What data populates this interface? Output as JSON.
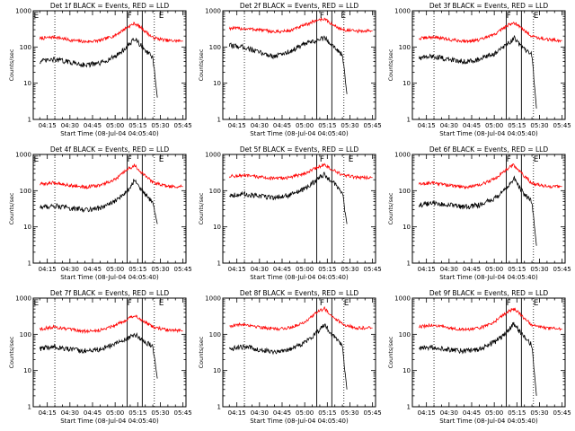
{
  "chart_data": [
    {
      "type": "line",
      "title": "Det 1f BLACK = Events, RED = LLD",
      "xlabel": "Start Time (08-Jul-04 04:05:40)",
      "ylabel": "Counts/sec",
      "xticks": [
        "04:15",
        "04:30",
        "04:45",
        "05:00",
        "05:15",
        "05:30",
        "05:45"
      ],
      "yticks": [
        "1",
        "10",
        "100",
        "1000"
      ],
      "xlim": [
        "04:05:40",
        "05:47"
      ],
      "ylim": [
        1,
        1000
      ],
      "yscale": "log",
      "markers": [
        {
          "label": "E",
          "time": "04:06"
        },
        {
          "label": "F",
          "time": "05:08"
        },
        {
          "label": "E",
          "time": "05:29"
        }
      ],
      "solid_lines": [
        "05:08",
        "05:18"
      ],
      "dotted_lines": [
        "04:20",
        "05:26"
      ],
      "series": [
        {
          "color": "#ff0000",
          "x": [
            "04:10",
            "04:20",
            "04:30",
            "04:40",
            "04:50",
            "05:00",
            "05:08",
            "05:13",
            "05:18",
            "05:25",
            "05:35",
            "05:45"
          ],
          "y": [
            170,
            190,
            155,
            140,
            150,
            210,
            350,
            450,
            320,
            180,
            150,
            145
          ]
        },
        {
          "color": "#000000",
          "x": [
            "04:10",
            "04:20",
            "04:30",
            "04:40",
            "04:50",
            "05:00",
            "05:08",
            "05:13",
            "05:18",
            "05:25",
            "05:28"
          ],
          "y": [
            40,
            45,
            38,
            32,
            35,
            55,
            100,
            170,
            100,
            50,
            4
          ]
        }
      ]
    },
    {
      "type": "line",
      "title": "Det 2f BLACK = Events, RED = LLD",
      "xlabel": "Start Time (08-Jul-04 04:05:40)",
      "ylabel": "Counts/sec",
      "xticks": [
        "04:15",
        "04:30",
        "04:45",
        "05:00",
        "05:15",
        "05:30",
        "05:45"
      ],
      "yticks": [
        "1",
        "10",
        "100",
        "1000"
      ],
      "xlim": [
        "04:05:40",
        "05:47"
      ],
      "ylim": [
        1,
        1000
      ],
      "yscale": "log",
      "markers": [
        {
          "label": "F",
          "time": "05:10"
        },
        {
          "label": "E",
          "time": "05:24"
        }
      ],
      "solid_lines": [
        "05:08",
        "05:18"
      ],
      "dotted_lines": [
        "04:20",
        "05:26"
      ],
      "series": [
        {
          "color": "#ff0000",
          "x": [
            "04:10",
            "04:20",
            "04:30",
            "04:40",
            "04:50",
            "05:00",
            "05:08",
            "05:13",
            "05:18",
            "05:25",
            "05:35",
            "05:45"
          ],
          "y": [
            330,
            320,
            300,
            260,
            280,
            400,
            550,
            600,
            420,
            300,
            270,
            280
          ]
        },
        {
          "color": "#000000",
          "x": [
            "04:10",
            "04:20",
            "04:30",
            "04:40",
            "04:50",
            "05:00",
            "05:08",
            "05:13",
            "05:18",
            "05:25",
            "05:28"
          ],
          "y": [
            110,
            100,
            70,
            55,
            75,
            120,
            150,
            180,
            120,
            60,
            5
          ]
        }
      ]
    },
    {
      "type": "line",
      "title": "Det 3f BLACK = Events, RED = LLD",
      "xlabel": "Start Time (08-Jul-04 04:05:40)",
      "ylabel": "Counts/sec",
      "xticks": [
        "04:15",
        "04:30",
        "04:45",
        "05:00",
        "05:15",
        "05:30",
        "05:45"
      ],
      "yticks": [
        "1",
        "10",
        "100",
        "1000"
      ],
      "xlim": [
        "04:05:40",
        "05:47"
      ],
      "ylim": [
        1,
        1000
      ],
      "yscale": "log",
      "markers": [
        {
          "label": "F",
          "time": "05:08"
        },
        {
          "label": "E",
          "time": "05:26"
        }
      ],
      "solid_lines": [
        "05:08",
        "05:18"
      ],
      "dotted_lines": [
        "04:20",
        "05:26"
      ],
      "series": [
        {
          "color": "#ff0000",
          "x": [
            "04:10",
            "04:20",
            "04:30",
            "04:40",
            "04:50",
            "05:00",
            "05:08",
            "05:13",
            "05:18",
            "05:25",
            "05:35",
            "05:45"
          ],
          "y": [
            170,
            190,
            160,
            145,
            155,
            220,
            380,
            480,
            330,
            200,
            160,
            150
          ]
        },
        {
          "color": "#000000",
          "x": [
            "04:10",
            "04:20",
            "04:30",
            "04:40",
            "04:50",
            "05:00",
            "05:08",
            "05:13",
            "05:18",
            "05:25",
            "05:28"
          ],
          "y": [
            50,
            55,
            45,
            40,
            45,
            65,
            110,
            180,
            100,
            60,
            2
          ]
        }
      ]
    },
    {
      "type": "line",
      "title": "Det 4f BLACK = Events, RED = LLD",
      "xlabel": "Start Time (08-Jul-04 04:05:40)",
      "ylabel": "Counts/sec",
      "xticks": [
        "04:15",
        "04:30",
        "04:45",
        "05:00",
        "05:15",
        "05:30",
        "05:45"
      ],
      "yticks": [
        "1",
        "10",
        "100",
        "1000"
      ],
      "xlim": [
        "04:05:40",
        "05:47"
      ],
      "ylim": [
        1,
        1000
      ],
      "yscale": "log",
      "markers": [
        {
          "label": "E",
          "time": "04:06"
        },
        {
          "label": "F",
          "time": "05:08"
        },
        {
          "label": "E",
          "time": "05:29"
        }
      ],
      "solid_lines": [
        "05:08",
        "05:18"
      ],
      "dotted_lines": [
        "04:20",
        "05:26"
      ],
      "series": [
        {
          "color": "#ff0000",
          "x": [
            "04:10",
            "04:20",
            "04:30",
            "04:40",
            "04:50",
            "05:00",
            "05:08",
            "05:13",
            "05:18",
            "05:25",
            "05:35",
            "05:45"
          ],
          "y": [
            150,
            165,
            140,
            125,
            140,
            200,
            380,
            500,
            300,
            170,
            130,
            130
          ]
        },
        {
          "color": "#000000",
          "x": [
            "04:10",
            "04:20",
            "04:30",
            "04:40",
            "04:50",
            "05:00",
            "05:08",
            "05:13",
            "05:18",
            "05:25",
            "05:28"
          ],
          "y": [
            35,
            38,
            33,
            30,
            33,
            50,
            100,
            200,
            100,
            45,
            12
          ]
        }
      ]
    },
    {
      "type": "line",
      "title": "Det 5f BLACK = Events, RED = LLD",
      "xlabel": "Start Time (08-Jul-04 04:05:40)",
      "ylabel": "Counts/sec",
      "xticks": [
        "04:15",
        "04:30",
        "04:45",
        "05:00",
        "05:15",
        "05:30",
        "05:45"
      ],
      "yticks": [
        "1",
        "10",
        "100",
        "1000"
      ],
      "xlim": [
        "04:05:40",
        "05:47"
      ],
      "ylim": [
        1,
        1000
      ],
      "yscale": "log",
      "markers": [
        {
          "label": "F",
          "time": "05:10"
        },
        {
          "label": "E",
          "time": "05:29"
        }
      ],
      "solid_lines": [
        "05:08",
        "05:18"
      ],
      "dotted_lines": [
        "04:20",
        "05:26"
      ],
      "series": [
        {
          "color": "#ff0000",
          "x": [
            "04:10",
            "04:20",
            "04:30",
            "04:40",
            "04:50",
            "05:00",
            "05:08",
            "05:13",
            "05:18",
            "05:25",
            "05:35",
            "05:45"
          ],
          "y": [
            250,
            260,
            240,
            215,
            230,
            300,
            430,
            520,
            380,
            270,
            230,
            230
          ]
        },
        {
          "color": "#000000",
          "x": [
            "04:10",
            "04:20",
            "04:30",
            "04:40",
            "04:50",
            "05:00",
            "05:08",
            "05:13",
            "05:18",
            "05:25",
            "05:28"
          ],
          "y": [
            75,
            80,
            70,
            65,
            75,
            110,
            200,
            280,
            180,
            90,
            12
          ]
        }
      ]
    },
    {
      "type": "line",
      "title": "Det 6f BLACK = Events, RED = LLD",
      "xlabel": "Start Time (08-Jul-04 04:05:40)",
      "ylabel": "Counts/sec",
      "xticks": [
        "04:15",
        "04:30",
        "04:45",
        "05:00",
        "05:15",
        "05:30",
        "05:45"
      ],
      "yticks": [
        "1",
        "10",
        "100",
        "1000"
      ],
      "xlim": [
        "04:05:40",
        "05:47"
      ],
      "ylim": [
        1,
        1000
      ],
      "yscale": "log",
      "markers": [
        {
          "label": "F",
          "time": "05:08"
        },
        {
          "label": "E",
          "time": "05:26"
        }
      ],
      "solid_lines": [
        "05:08",
        "05:18"
      ],
      "dotted_lines": [
        "04:20",
        "05:26"
      ],
      "series": [
        {
          "color": "#ff0000",
          "x": [
            "04:10",
            "04:20",
            "04:30",
            "04:40",
            "04:50",
            "05:00",
            "05:08",
            "05:13",
            "05:18",
            "05:25",
            "05:35",
            "05:45"
          ],
          "y": [
            150,
            165,
            140,
            125,
            140,
            210,
            380,
            520,
            300,
            160,
            130,
            130
          ]
        },
        {
          "color": "#000000",
          "x": [
            "04:10",
            "04:20",
            "04:30",
            "04:40",
            "04:50",
            "05:00",
            "05:08",
            "05:13",
            "05:18",
            "05:25",
            "05:28"
          ],
          "y": [
            40,
            45,
            40,
            35,
            40,
            60,
            110,
            220,
            100,
            50,
            3
          ]
        }
      ]
    },
    {
      "type": "line",
      "title": "Det 7f BLACK = Events, RED = LLD",
      "xlabel": "Start Time (08-Jul-04 04:05:40)",
      "ylabel": "Counts/sec",
      "xticks": [
        "04:15",
        "04:30",
        "04:45",
        "05:00",
        "05:15",
        "05:30",
        "05:45"
      ],
      "yticks": [
        "1",
        "10",
        "100",
        "1000"
      ],
      "xlim": [
        "04:05:40",
        "05:47"
      ],
      "ylim": [
        1,
        1000
      ],
      "yscale": "log",
      "markers": [
        {
          "label": "E",
          "time": "04:06"
        },
        {
          "label": "F",
          "time": "05:08"
        },
        {
          "label": "E",
          "time": "05:29"
        }
      ],
      "solid_lines": [
        "05:08",
        "05:18"
      ],
      "dotted_lines": [
        "04:20",
        "05:26"
      ],
      "series": [
        {
          "color": "#ff0000",
          "x": [
            "04:10",
            "04:20",
            "04:30",
            "04:40",
            "04:50",
            "05:00",
            "05:08",
            "05:13",
            "05:18",
            "05:25",
            "05:35",
            "05:45"
          ],
          "y": [
            140,
            160,
            135,
            120,
            130,
            180,
            260,
            340,
            240,
            160,
            130,
            125
          ]
        },
        {
          "color": "#000000",
          "x": [
            "04:10",
            "04:20",
            "04:30",
            "04:40",
            "04:50",
            "05:00",
            "05:08",
            "05:13",
            "05:18",
            "05:25",
            "05:28"
          ],
          "y": [
            40,
            45,
            38,
            35,
            38,
            55,
            75,
            100,
            70,
            45,
            6
          ]
        }
      ]
    },
    {
      "type": "line",
      "title": "Det 8f BLACK = Events, RED = LLD",
      "xlabel": "Start Time (08-Jul-04 04:05:40)",
      "ylabel": "Counts/sec",
      "xticks": [
        "04:15",
        "04:30",
        "04:45",
        "05:00",
        "05:15",
        "05:30",
        "05:45"
      ],
      "yticks": [
        "1",
        "10",
        "100",
        "1000"
      ],
      "xlim": [
        "04:05:40",
        "05:47"
      ],
      "ylim": [
        1,
        1000
      ],
      "yscale": "log",
      "markers": [
        {
          "label": "F",
          "time": "05:10"
        },
        {
          "label": "E",
          "time": "05:26"
        }
      ],
      "solid_lines": [
        "05:08",
        "05:18"
      ],
      "dotted_lines": [
        "04:20",
        "05:26"
      ],
      "series": [
        {
          "color": "#ff0000",
          "x": [
            "04:10",
            "04:20",
            "04:30",
            "04:40",
            "04:50",
            "05:00",
            "05:08",
            "05:13",
            "05:18",
            "05:25",
            "05:35",
            "05:45"
          ],
          "y": [
            170,
            190,
            160,
            140,
            150,
            220,
            400,
            520,
            330,
            190,
            150,
            150
          ]
        },
        {
          "color": "#000000",
          "x": [
            "04:10",
            "04:20",
            "04:30",
            "04:40",
            "04:50",
            "05:00",
            "05:08",
            "05:13",
            "05:18",
            "05:25",
            "05:28"
          ],
          "y": [
            40,
            45,
            38,
            33,
            38,
            60,
            110,
            190,
            100,
            50,
            3
          ]
        }
      ]
    },
    {
      "type": "line",
      "title": "Det 9f BLACK = Events, RED = LLD",
      "xlabel": "Start Time (08-Jul-04 04:05:40)",
      "ylabel": "Counts/sec",
      "xticks": [
        "04:15",
        "04:30",
        "04:45",
        "05:00",
        "05:15",
        "05:30",
        "05:45"
      ],
      "yticks": [
        "1",
        "10",
        "100",
        "1000"
      ],
      "xlim": [
        "04:05:40",
        "05:47"
      ],
      "ylim": [
        1,
        1000
      ],
      "yscale": "log",
      "markers": [
        {
          "label": "F",
          "time": "05:08"
        },
        {
          "label": "E",
          "time": "05:26"
        }
      ],
      "solid_lines": [
        "05:08",
        "05:18"
      ],
      "dotted_lines": [
        "04:20",
        "05:26"
      ],
      "series": [
        {
          "color": "#ff0000",
          "x": [
            "04:10",
            "04:20",
            "04:30",
            "04:40",
            "04:50",
            "05:00",
            "05:08",
            "05:13",
            "05:18",
            "05:25",
            "05:35",
            "05:45"
          ],
          "y": [
            160,
            180,
            150,
            135,
            145,
            220,
            400,
            520,
            330,
            180,
            145,
            140
          ]
        },
        {
          "color": "#000000",
          "x": [
            "04:10",
            "04:20",
            "04:30",
            "04:40",
            "04:50",
            "05:00",
            "05:08",
            "05:13",
            "05:18",
            "05:25",
            "05:28"
          ],
          "y": [
            40,
            45,
            38,
            34,
            38,
            60,
            110,
            200,
            100,
            50,
            2
          ]
        }
      ]
    }
  ]
}
